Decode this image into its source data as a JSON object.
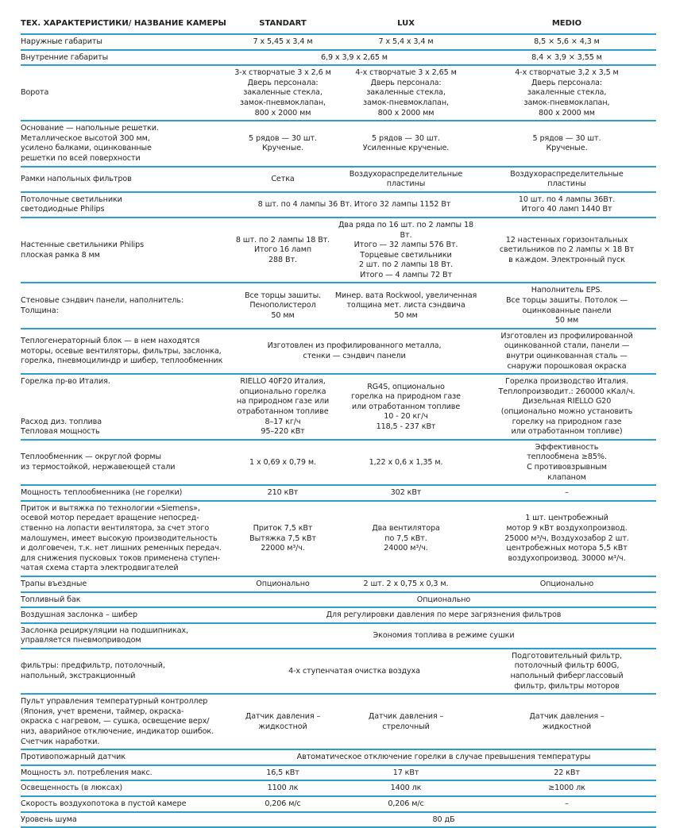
{
  "header": [
    "ТЕХ. ХАРАКТЕРИСТИКИ/ НАЗВАНИЕ КАМЕРЫ",
    "STANDART",
    "LUX",
    "MEDIO"
  ],
  "rows": [
    {
      "label": "Наружные габариты",
      "cells": [
        {
          "text": "7 х 5,45 х 3,4 м",
          "span": 1
        },
        {
          "text": "7 х 5,4 х 3,4 м",
          "span": 1
        },
        {
          "text": "8,5 × 5,6 × 4,3 м",
          "span": 1
        }
      ]
    },
    {
      "label": "Внутренние габариты",
      "cells": [
        {
          "text": "6,9 х 3,9 х 2,65 м",
          "span": 2
        },
        {
          "text": "8,4 × 3,9 × 3,55 м",
          "span": 1
        }
      ]
    },
    {
      "label": "Ворота",
      "cells": [
        {
          "text": "3-х створчатые 3 х 2,6 м\nДверь персонала:\nзакаленные стекла,\nзамок-пневмоклапан,\n800 х 2000 мм",
          "span": 1
        },
        {
          "text": "4-х створчатые 3 х 2,65 м\nДверь персонала:\nзакаленные стекла,\nзамок-пневмоклапан,\n800 х 2000 мм",
          "span": 1
        },
        {
          "text": "4-х створчатые 3,2 х 3,5 м\nДверь персонала:\nзакаленные стекла,\nзамок-пневмоклапан,\n800 х 2000 мм",
          "span": 1
        }
      ]
    },
    {
      "label": "Основание — напольные решетки.\nМеталлическое высотой 300 мм,\nусилено балками, оцинкованные\nрешетки по всей поверхности",
      "cells": [
        {
          "text": "5 рядов — 30 шт.\nКрученые.",
          "span": 1
        },
        {
          "text": "5 рядов — 30 шт.\nУсиленные крученые.",
          "span": 1
        },
        {
          "text": "5 рядов — 30 шт.\nКрученые.",
          "span": 1
        }
      ]
    },
    {
      "label": "Рамки напольных фильтров",
      "cells": [
        {
          "text": "Сетка",
          "span": 1
        },
        {
          "text": "Воздухораспределительные\nпластины",
          "span": 1
        },
        {
          "text": "Воздухораспределительные\nпластины",
          "span": 1
        }
      ]
    },
    {
      "label": "Потолочные светильники\nсветодиодные Philips",
      "cells": [
        {
          "text": "8 шт. по 4 лампы 36 Вт. Итого 32 лампы 1152 Вт",
          "span": 2
        },
        {
          "text": "10 шт. по 4 лампы 36Вт.\nИтого 40 ламп 1440 Вт",
          "span": 1
        }
      ]
    },
    {
      "label": "Настенные светильники Philips\nплоская рамка 8 мм",
      "cells": [
        {
          "text": "8 шт. по 2 лампы 18 Вт.\nИтого 16 ламп\n288 Вт.",
          "span": 1
        },
        {
          "text": "Два ряда по 16 шт. по 2 лампы 18 Вт.\nИтого — 32 лампы 576 Вт.\nТорцевые светильники\n2 шт. по 2 лампы 18 Вт.\nИтого — 4 лампы 72 Вт",
          "span": 1
        },
        {
          "text": "12 настенных горизонтальных\nсветильников по 2 лампы × 18 Вт\nв каждом. Электронный пуск",
          "span": 1
        }
      ]
    },
    {
      "label": "Стеновые сэндвич панели, наполнитель:\nТолщина:",
      "cells": [
        {
          "text": "Все торцы зашиты.\nПенополистерол\n50 мм",
          "span": 1
        },
        {
          "text": "Минер. вата Rockwool, увеличенная\nтолщина мет. листа сэндвича\n50 мм",
          "span": 1
        },
        {
          "text": "Наполнитель EPS.\nВсе торцы зашиты. Потолок —\nоцинкованные панели\n50 мм",
          "span": 1
        }
      ]
    },
    {
      "label": "Теплогенераторный блок — в нем находятся\nмоторы, осевые вентиляторы, фильтры, заслонка,\nгорелка, пневмоцилиндр и шибер, теплообменник",
      "cells": [
        {
          "text": "Изготовлен из профилированного металла,\nстенки — сэндвич панели",
          "span": 2
        },
        {
          "text": "Изготовлен из профилированной\nоцинкованной стали, панели —\nвнутри оцинкованная сталь —\nснаружи порошковая окраска",
          "span": 1
        }
      ]
    },
    {
      "label": "Горелка пр-во Италия.\n\n\n\nРасход диз. топлива\nТепловая мощность",
      "cells": [
        {
          "text": "RIELLO 40F20 Италия,\nопционально горелка\nна природном газе или\nотработанном топливе\n8–17 кг/ч\n95–220 кВт",
          "span": 1
        },
        {
          "text": "RG4S, опционально\nгорелка на природном газе\nили отработанном топливе\n10 - 20 кг/ч\n118,5 - 237 кВт",
          "span": 1
        },
        {
          "text": "Горелка производство Италия.\nТеплопроизводит.: 260000 кКал/ч.\nДизельная RIELLO G20\n(опционально можно установить\nгорелку на природном газе\nили отработанном топливе)",
          "span": 1
        }
      ]
    },
    {
      "label": "Теплообменник — округлой формы\nиз термостойкой, нержавеющей стали",
      "cells": [
        {
          "text": "1 х 0,69 х 0,79 м.",
          "span": 1
        },
        {
          "text": "1,22 х 0,6 х 1,35 м.",
          "span": 1
        },
        {
          "text": "Эффективность\nтеплообмена ≥85%.\nС противовзрывным\nклапаном",
          "span": 1
        }
      ]
    },
    {
      "label": "Мощность теплообменника (не горелки)",
      "cells": [
        {
          "text": "210 кВт",
          "span": 1
        },
        {
          "text": "302 кВт",
          "span": 1
        },
        {
          "text": "–",
          "span": 1
        }
      ]
    },
    {
      "label": "Приток и вытяжка по технологии «Siemens»,\nосевой мотор передает вращение непосред-\nственно на лопасти вентилятора, за счет этого\nмалошумен, имеет высокую производительность\nи долговечен, т.к. нет лишних ременных передач.\nдля снижения пусковых токов применена ступен-\nчатая схема старта электродвигателей",
      "cells": [
        {
          "text": "Приток 7,5 кВт\nВытяжка 7,5 кВт\n22000 м³/ч.",
          "span": 1
        },
        {
          "text": "Два вентилятора\nпо 7,5 кВт.\n24000 м³/ч.",
          "span": 1
        },
        {
          "text": "1 шт. центробежный\nмотор 9 кВт воздухопроизвод.\n25000 м³/ч, Воздухозабор 2 шт.\nцентробежных мотора 5,5 кВт\nвоздухопроизвод. 30000 м³/ч.",
          "span": 1
        }
      ]
    },
    {
      "label": "Трапы въездные",
      "cells": [
        {
          "text": "Опционально",
          "span": 1
        },
        {
          "text": "2 шт. 2 х 0,75 х 0,3 м.",
          "span": 1
        },
        {
          "text": "Опционально",
          "span": 1
        }
      ]
    },
    {
      "label": "Топливный бак",
      "cells": [
        {
          "text": "Опционально",
          "span": 3
        }
      ]
    },
    {
      "label": "Воздушная заслонка – шибер",
      "cells": [
        {
          "text": "Для регулировки давления по мере загрязнения фильтров",
          "span": 3
        }
      ]
    },
    {
      "label": "Заслонка рециркуляции на подшипниках,\nуправляется пневмоприводом",
      "cells": [
        {
          "text": "Экономия топлива в режиме сушки",
          "span": 3
        }
      ]
    },
    {
      "label": "фильтры: предфильтр, потолочный,\nнапольный, экстракционный",
      "cells": [
        {
          "text": "4-х ступенчатая очистка воздуха",
          "span": 2
        },
        {
          "text": "Подготовительный фильтр,\nпотолочный фильтр 600G,\nнапольный фиберглассовый\nфильтр, фильтры моторов",
          "span": 1
        }
      ]
    },
    {
      "label": "Пульт управления температурный контроллер\n(Япония, учет времени, таймер, окраска-\nокраска с нагревом, — сушка, освещение верх/\nниз, аварийное отключение, индикатор ошибок.\nСчетчик наработки.",
      "cells": [
        {
          "text": "Датчик давления –\nжидкостной",
          "span": 1
        },
        {
          "text": "Датчик давления –\nстрелочный",
          "span": 1
        },
        {
          "text": "Датчик давления –\nжидкостной",
          "span": 1
        }
      ]
    },
    {
      "label": "Противопожарный датчик",
      "cells": [
        {
          "text": "Автоматическое отключение горелки в случае превышения температуры",
          "span": 3
        }
      ]
    },
    {
      "label": "Мощность эл. потребления макс.",
      "cells": [
        {
          "text": "16,5 кВт",
          "span": 1
        },
        {
          "text": "17 кВт",
          "span": 1
        },
        {
          "text": "22 кВт",
          "span": 1
        }
      ]
    },
    {
      "label": "Освещенность (в люксах)",
      "cells": [
        {
          "text": "1100 лк",
          "span": 1
        },
        {
          "text": "1400 лк",
          "span": 1
        },
        {
          "text": "≥1000 лк",
          "span": 1
        }
      ]
    },
    {
      "label": "Скорость воздухопотока в пустой камере",
      "cells": [
        {
          "text": "0,206 м/с",
          "span": 1
        },
        {
          "text": "0,206 м/с",
          "span": 1
        },
        {
          "text": "–",
          "span": 1
        }
      ]
    },
    {
      "label": "Уровень шума",
      "cells": [
        {
          "text": "80 дБ",
          "span": 3
        }
      ]
    }
  ],
  "colors": {
    "rule": "#2a9fd0",
    "text": "#222222"
  }
}
